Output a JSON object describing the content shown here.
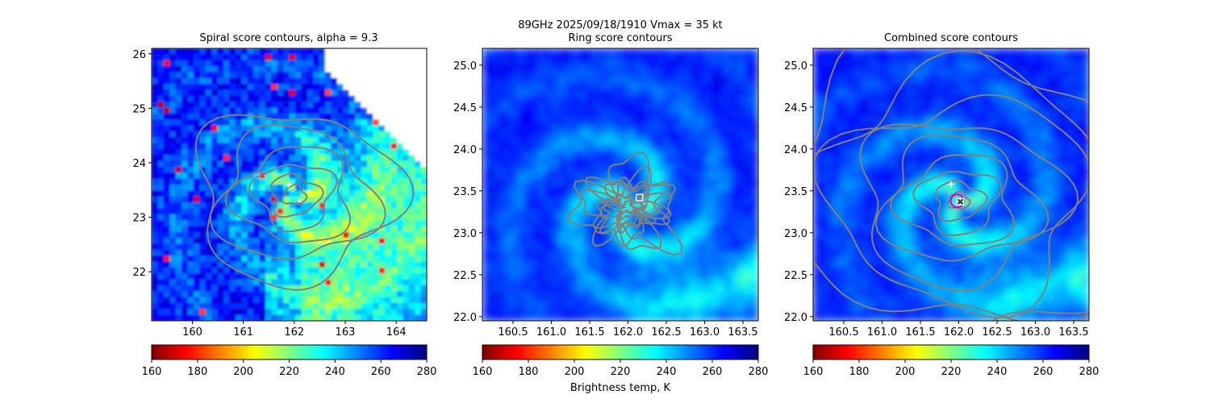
{
  "figure": {
    "suptitle": "89GHz  2025/09/18/1910    Vmax = 35 kt",
    "colorbar_label": "Brightness temp, K"
  },
  "colors": {
    "contour": "#808080",
    "center_marker": "#ffffff",
    "combined_center_circle": "#d000d0"
  },
  "colormap": {
    "name": "jet_r",
    "stops": [
      "#800000",
      "#ff0000",
      "#ff8000",
      "#ffff00",
      "#80ff80",
      "#00ffff",
      "#0080ff",
      "#0000ff",
      "#000080"
    ]
  },
  "chart_data": [
    {
      "type": "heatmap",
      "title": "Spiral score contours, alpha =  9.3",
      "xlim": [
        159.2,
        164.6
      ],
      "ylim": [
        21.1,
        26.1
      ],
      "xticks": [
        160,
        161,
        162,
        163,
        164
      ],
      "yticks": [
        22,
        23,
        24,
        25,
        26
      ],
      "colorbar": {
        "range": [
          160,
          280
        ],
        "ticks": [
          160,
          180,
          200,
          220,
          240,
          260,
          280
        ]
      },
      "markers": [
        {
          "kind": "plus",
          "x": 161.9,
          "y": 23.6
        },
        {
          "kind": "dot",
          "x": 162.1,
          "y": 23.3
        }
      ],
      "contour_center": [
        162.0,
        23.4
      ]
    },
    {
      "type": "heatmap",
      "title": "Ring score contours",
      "xlim": [
        160.1,
        163.7
      ],
      "ylim": [
        21.95,
        25.2
      ],
      "xticks": [
        160.5,
        161.0,
        161.5,
        162.0,
        162.5,
        163.0,
        163.5
      ],
      "yticks": [
        22.0,
        22.5,
        23.0,
        23.5,
        24.0,
        24.5,
        25.0
      ],
      "colorbar": {
        "range": [
          160,
          280
        ],
        "ticks": [
          160,
          180,
          200,
          220,
          240,
          260,
          280
        ]
      },
      "markers": [
        {
          "kind": "square",
          "x": 162.15,
          "y": 23.42
        }
      ],
      "contour_center": [
        162.0,
        23.3
      ]
    },
    {
      "type": "heatmap",
      "title": "Combined score contours",
      "xlim": [
        160.1,
        163.7
      ],
      "ylim": [
        21.95,
        25.2
      ],
      "xticks": [
        160.5,
        161.0,
        161.5,
        162.0,
        162.5,
        163.0,
        163.5
      ],
      "yticks": [
        22.0,
        22.5,
        23.0,
        23.5,
        24.0,
        24.5,
        25.0
      ],
      "colorbar": {
        "range": [
          160,
          280
        ],
        "ticks": [
          160,
          180,
          200,
          220,
          240,
          260,
          280
        ]
      },
      "markers": [
        {
          "kind": "plus",
          "x": 161.9,
          "y": 23.58
        },
        {
          "kind": "circle",
          "x": 161.98,
          "y": 23.38
        },
        {
          "kind": "square",
          "x": 162.02,
          "y": 23.37
        },
        {
          "kind": "x",
          "x": 162.02,
          "y": 23.37
        }
      ],
      "contour_center": [
        162.0,
        23.38
      ]
    }
  ]
}
